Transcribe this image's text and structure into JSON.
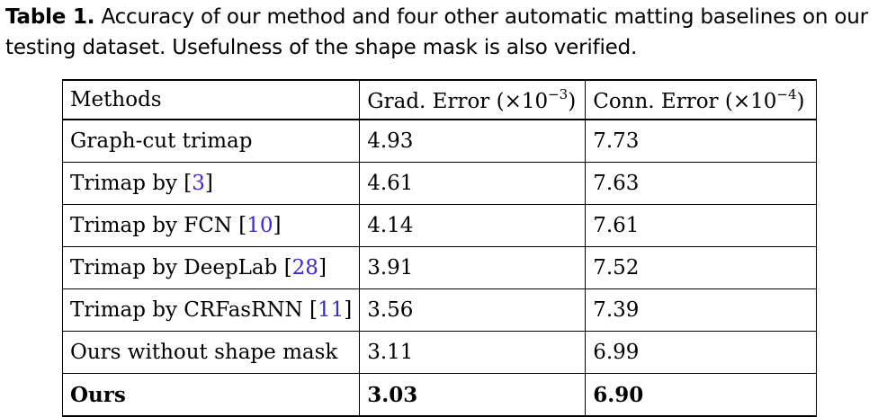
{
  "caption": {
    "label": "Table 1.",
    "text": "Accuracy of our method and four other automatic matting baselines on our testing dataset. Usefulness of the shape mask is also verified."
  },
  "table": {
    "headers": {
      "methods": "Methods",
      "grad_prefix": "Grad. Error (×10",
      "grad_exp": "−3",
      "grad_suffix": ")",
      "conn_prefix": "Conn. Error (×10",
      "conn_exp": "−4",
      "conn_suffix": ")"
    },
    "rows": [
      {
        "method": "Graph-cut trimap",
        "ref": "",
        "grad": "4.93",
        "conn": "7.73"
      },
      {
        "method": "Trimap by ",
        "ref": "3",
        "grad": "4.61",
        "conn": "7.63"
      },
      {
        "method": "Trimap by FCN ",
        "ref": "10",
        "grad": "4.14",
        "conn": "7.61"
      },
      {
        "method": "Trimap by DeepLab ",
        "ref": "28",
        "grad": "3.91",
        "conn": "7.52"
      },
      {
        "method": "Trimap by CRFasRNN ",
        "ref": "11",
        "grad": "3.56",
        "conn": "7.39"
      },
      {
        "method": "Ours without shape mask",
        "ref": "",
        "grad": "3.11",
        "conn": "6.99"
      },
      {
        "method": "Ours",
        "ref": "",
        "grad": "3.03",
        "conn": "6.90"
      }
    ]
  },
  "colors": {
    "citation": "#3a2bd1"
  }
}
